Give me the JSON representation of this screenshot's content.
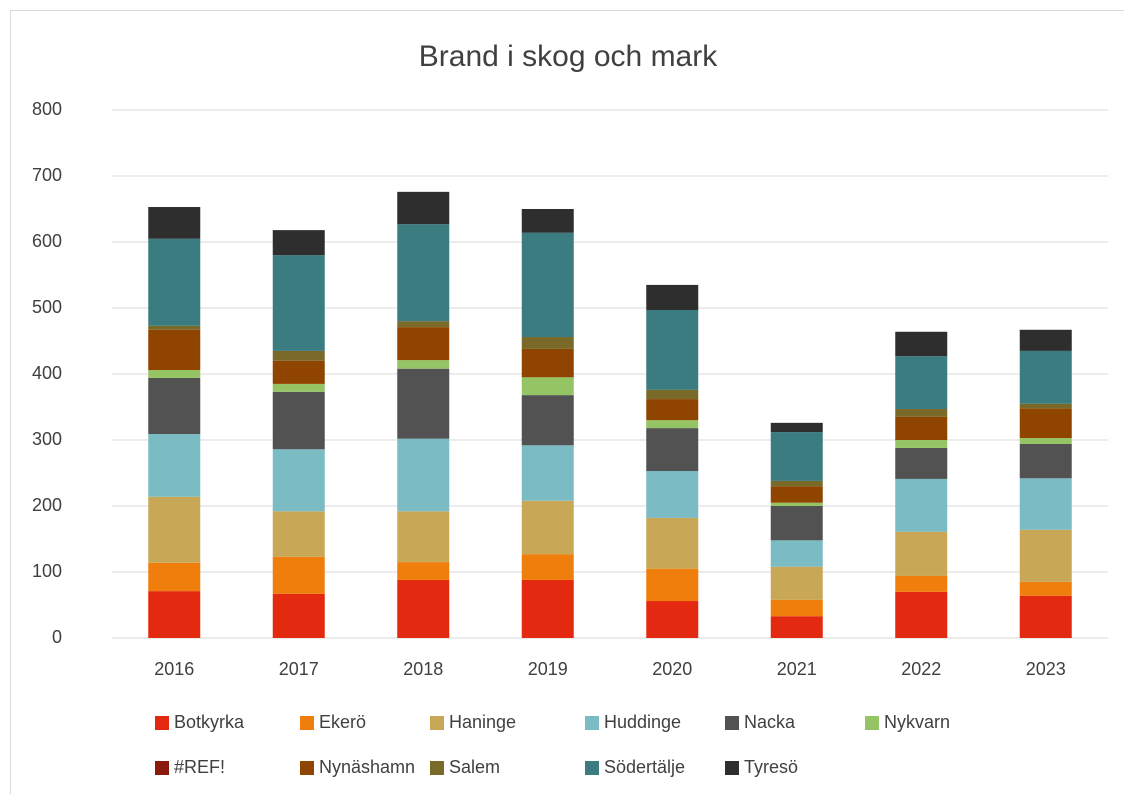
{
  "chart_data": {
    "type": "stacked_bar",
    "title": "Brand i skog och mark",
    "categories": [
      "2016",
      "2017",
      "2018",
      "2019",
      "2020",
      "2021",
      "2022",
      "2023"
    ],
    "series": [
      {
        "name": "Botkyrka",
        "color": "#e3290f",
        "values": [
          71,
          67,
          88,
          88,
          56,
          33,
          70,
          64
        ]
      },
      {
        "name": "Ekerö",
        "color": "#f07e0c",
        "values": [
          43,
          56,
          27,
          39,
          49,
          25,
          24,
          21
        ]
      },
      {
        "name": "Haninge",
        "color": "#c8a856",
        "values": [
          100,
          69,
          77,
          81,
          77,
          50,
          67,
          79
        ]
      },
      {
        "name": "Huddinge",
        "color": "#7bbcc4",
        "values": [
          95,
          94,
          110,
          84,
          71,
          40,
          80,
          78
        ]
      },
      {
        "name": "Nacka",
        "color": "#525252",
        "values": [
          85,
          87,
          106,
          76,
          65,
          52,
          47,
          52
        ]
      },
      {
        "name": "Nykvarn",
        "color": "#94c464",
        "values": [
          12,
          12,
          13,
          27,
          12,
          5,
          12,
          9
        ]
      },
      {
        "name": "#REF!",
        "color": "#8b1a0e",
        "values": [
          0,
          0,
          0,
          0,
          0,
          0,
          0,
          0
        ]
      },
      {
        "name": "Nynäshamn",
        "color": "#8f4400",
        "values": [
          61,
          35,
          50,
          43,
          32,
          25,
          35,
          45
        ]
      },
      {
        "name": "Salem",
        "color": "#7a6a2a",
        "values": [
          6,
          15,
          9,
          18,
          14,
          8,
          12,
          7
        ]
      },
      {
        "name": "Södertälje",
        "color": "#3b7c80",
        "values": [
          132,
          145,
          147,
          158,
          121,
          74,
          80,
          80
        ]
      },
      {
        "name": "Tyresö",
        "color": "#2e2e2e",
        "values": [
          48,
          38,
          49,
          36,
          38,
          14,
          37,
          32
        ]
      }
    ],
    "ylim": [
      0,
      800
    ],
    "yticks": [
      0,
      100,
      200,
      300,
      400,
      500,
      600,
      700,
      800
    ],
    "grid": true
  }
}
